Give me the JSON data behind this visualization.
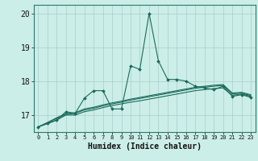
{
  "title": "",
  "xlabel": "Humidex (Indice chaleur)",
  "background_color": "#cceee8",
  "grid_color": "#aacccc",
  "line_color": "#1a6b5a",
  "x_values": [
    0,
    1,
    2,
    3,
    4,
    5,
    6,
    7,
    8,
    9,
    10,
    11,
    12,
    13,
    14,
    15,
    16,
    17,
    18,
    19,
    20,
    21,
    22,
    23
  ],
  "series1": [
    16.65,
    16.75,
    16.85,
    17.1,
    17.05,
    17.5,
    17.72,
    17.72,
    17.18,
    17.18,
    18.45,
    18.35,
    20.0,
    18.6,
    18.05,
    18.05,
    18.0,
    17.85,
    17.8,
    17.75,
    17.85,
    17.55,
    17.6,
    17.52
  ],
  "series2": [
    16.65,
    16.75,
    16.85,
    17.0,
    17.0,
    17.1,
    17.15,
    17.22,
    17.28,
    17.33,
    17.38,
    17.42,
    17.47,
    17.52,
    17.57,
    17.62,
    17.67,
    17.72,
    17.75,
    17.78,
    17.8,
    17.58,
    17.62,
    17.55
  ],
  "series3": [
    16.65,
    16.77,
    16.9,
    17.02,
    17.05,
    17.15,
    17.2,
    17.27,
    17.33,
    17.38,
    17.44,
    17.49,
    17.54,
    17.59,
    17.64,
    17.69,
    17.74,
    17.79,
    17.82,
    17.85,
    17.87,
    17.62,
    17.65,
    17.57
  ],
  "series4": [
    16.65,
    16.78,
    16.92,
    17.04,
    17.07,
    17.18,
    17.23,
    17.3,
    17.36,
    17.41,
    17.47,
    17.52,
    17.57,
    17.62,
    17.67,
    17.72,
    17.77,
    17.82,
    17.85,
    17.88,
    17.9,
    17.65,
    17.67,
    17.6
  ],
  "ylim": [
    16.5,
    20.25
  ],
  "xlim": [
    -0.5,
    23.5
  ],
  "yticks": [
    17,
    18,
    19,
    20
  ],
  "xtick_labels": [
    "0",
    "1",
    "2",
    "3",
    "4",
    "5",
    "6",
    "7",
    "8",
    "9",
    "10",
    "11",
    "12",
    "13",
    "14",
    "15",
    "16",
    "17",
    "18",
    "19",
    "20",
    "21",
    "22",
    "23"
  ]
}
